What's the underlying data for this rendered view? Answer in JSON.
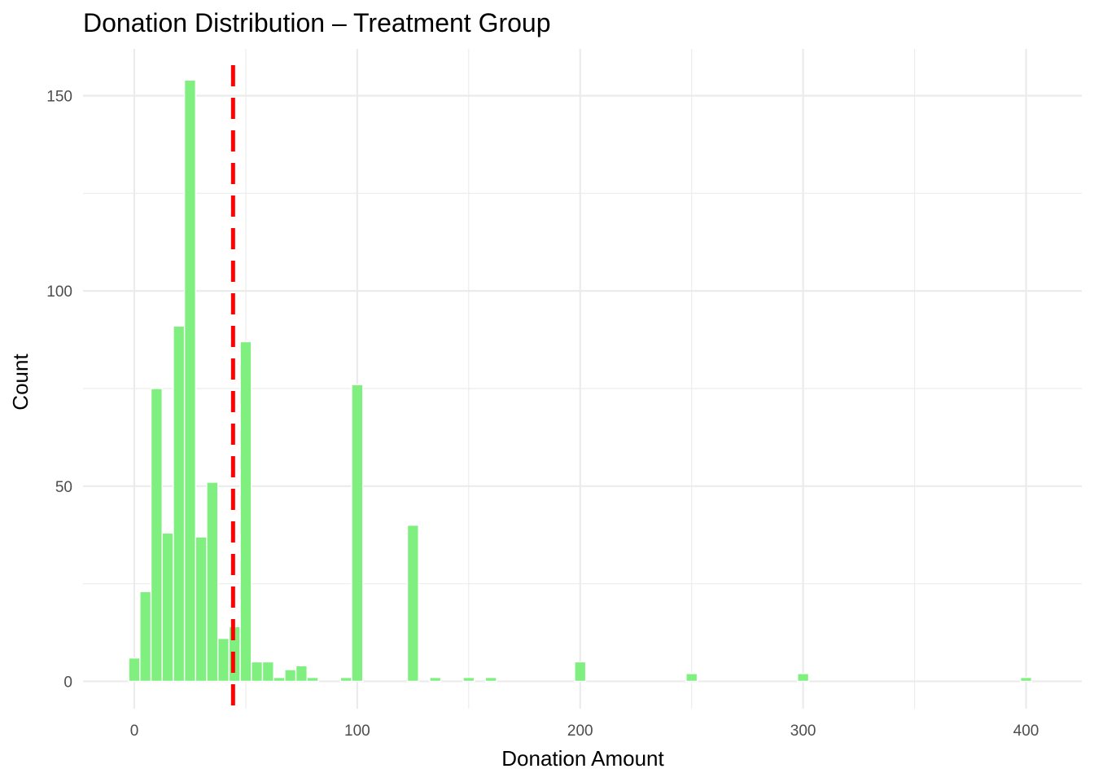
{
  "chart_data": {
    "type": "bar",
    "title": "Donation Distribution – Treatment Group",
    "xlabel": "Donation Amount",
    "ylabel": "Count",
    "xlim": [
      -23,
      425
    ],
    "ylim": [
      -7,
      162
    ],
    "x_ticks": [
      0,
      100,
      200,
      300,
      400
    ],
    "x_minor_ticks": [
      50,
      150,
      250,
      350
    ],
    "y_ticks": [
      0,
      50,
      100,
      150
    ],
    "y_minor_ticks": [
      25,
      75,
      125
    ],
    "bin_width": 5,
    "bins": [
      {
        "x": 0,
        "count": 6
      },
      {
        "x": 5,
        "count": 23
      },
      {
        "x": 10,
        "count": 75
      },
      {
        "x": 15,
        "count": 38
      },
      {
        "x": 20,
        "count": 91
      },
      {
        "x": 25,
        "count": 154
      },
      {
        "x": 30,
        "count": 37
      },
      {
        "x": 35,
        "count": 51
      },
      {
        "x": 40,
        "count": 11
      },
      {
        "x": 45,
        "count": 14
      },
      {
        "x": 50,
        "count": 87
      },
      {
        "x": 55,
        "count": 5
      },
      {
        "x": 60,
        "count": 5
      },
      {
        "x": 65,
        "count": 1
      },
      {
        "x": 70,
        "count": 3
      },
      {
        "x": 75,
        "count": 4
      },
      {
        "x": 80,
        "count": 1
      },
      {
        "x": 95,
        "count": 1
      },
      {
        "x": 100,
        "count": 76
      },
      {
        "x": 125,
        "count": 40
      },
      {
        "x": 135,
        "count": 1
      },
      {
        "x": 150,
        "count": 1
      },
      {
        "x": 160,
        "count": 1
      },
      {
        "x": 200,
        "count": 5
      },
      {
        "x": 250,
        "count": 2
      },
      {
        "x": 300,
        "count": 2
      },
      {
        "x": 400,
        "count": 1
      }
    ],
    "mean_line": {
      "x": 44.3,
      "color": "#ff0000",
      "style": "dashed"
    },
    "bar_color": "#7ff07f",
    "grid": true,
    "legend": "none"
  }
}
